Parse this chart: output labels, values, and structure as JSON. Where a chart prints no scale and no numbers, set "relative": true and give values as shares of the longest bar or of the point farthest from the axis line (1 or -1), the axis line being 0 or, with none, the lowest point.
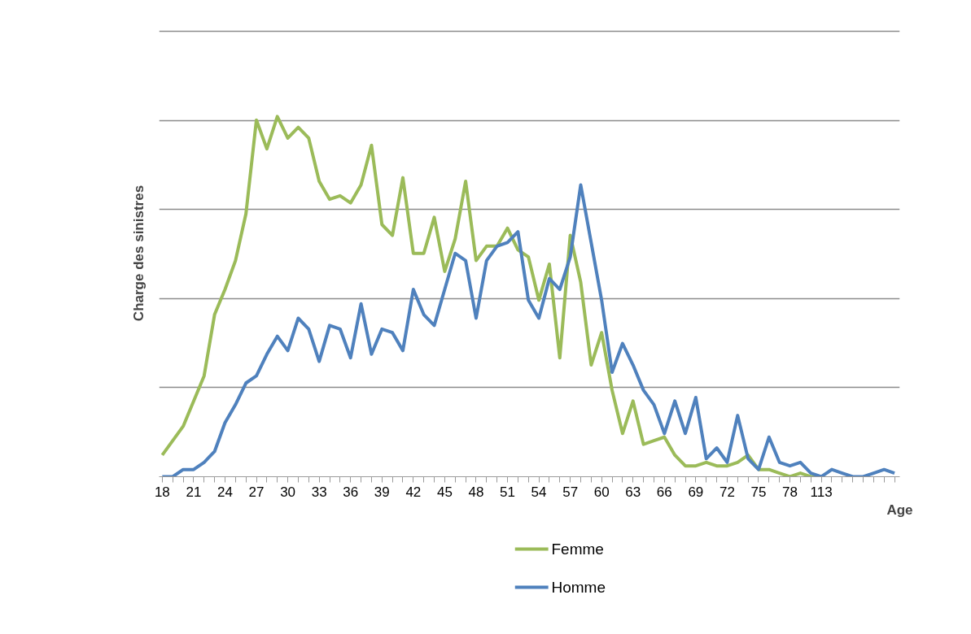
{
  "chart_data": {
    "type": "line",
    "xlabel": "Age",
    "ylabel": "Charge des sinistres",
    "relative": true,
    "grid": "y",
    "legend": "bottom",
    "marker": "none",
    "line_style": "solid",
    "categories": [
      "18",
      null,
      null,
      "21",
      null,
      null,
      "24",
      null,
      null,
      "27",
      null,
      null,
      "30",
      null,
      null,
      "33",
      null,
      null,
      "36",
      null,
      null,
      "39",
      null,
      null,
      "42",
      null,
      null,
      "45",
      null,
      null,
      "48",
      null,
      null,
      "51",
      null,
      null,
      "54",
      null,
      null,
      "57",
      null,
      null,
      "60",
      null,
      null,
      "63",
      null,
      null,
      "66",
      null,
      null,
      "69",
      null,
      null,
      "72",
      null,
      null,
      "75",
      null,
      null,
      "78",
      null,
      null,
      "113",
      null,
      null,
      null,
      null,
      null,
      null,
      null
    ],
    "series": [
      {
        "name": "Femme",
        "color": "#9bbb59",
        "values": [
          0.06,
          0.1,
          0.14,
          0.21,
          0.28,
          0.45,
          0.52,
          0.6,
          0.73,
          0.99,
          0.91,
          1.0,
          0.94,
          0.97,
          0.94,
          0.82,
          0.77,
          0.78,
          0.76,
          0.81,
          0.92,
          0.7,
          0.67,
          0.83,
          0.62,
          0.62,
          0.72,
          0.57,
          0.66,
          0.82,
          0.6,
          0.64,
          0.64,
          0.69,
          0.63,
          0.61,
          0.49,
          0.59,
          0.33,
          0.67,
          0.54,
          0.31,
          0.4,
          0.24,
          0.12,
          0.21,
          0.09,
          0.1,
          0.11,
          0.06,
          0.03,
          0.03,
          0.04,
          0.03,
          0.03,
          0.04,
          0.06,
          0.02,
          0.02,
          0.01,
          0.0,
          0.01,
          0.0,
          0.0,
          null,
          null,
          null,
          null,
          null,
          null,
          null
        ]
      },
      {
        "name": "Homme",
        "color": "#4f81bd",
        "values": [
          0.0,
          0.0,
          0.02,
          0.02,
          0.04,
          0.07,
          0.15,
          0.2,
          0.26,
          0.28,
          0.34,
          0.39,
          0.35,
          0.44,
          0.41,
          0.32,
          0.42,
          0.41,
          0.33,
          0.48,
          0.34,
          0.41,
          0.4,
          0.35,
          0.52,
          0.45,
          0.42,
          0.52,
          0.62,
          0.6,
          0.44,
          0.6,
          0.64,
          0.65,
          0.68,
          0.49,
          0.44,
          0.55,
          0.52,
          0.61,
          0.81,
          0.65,
          0.49,
          0.29,
          0.37,
          0.31,
          0.24,
          0.2,
          0.12,
          0.21,
          0.12,
          0.22,
          0.05,
          0.08,
          0.04,
          0.17,
          0.05,
          0.02,
          0.11,
          0.04,
          0.03,
          0.04,
          0.01,
          0.0,
          0.02,
          0.01,
          0.0,
          0.0,
          0.01,
          0.02,
          0.01
        ]
      }
    ]
  }
}
